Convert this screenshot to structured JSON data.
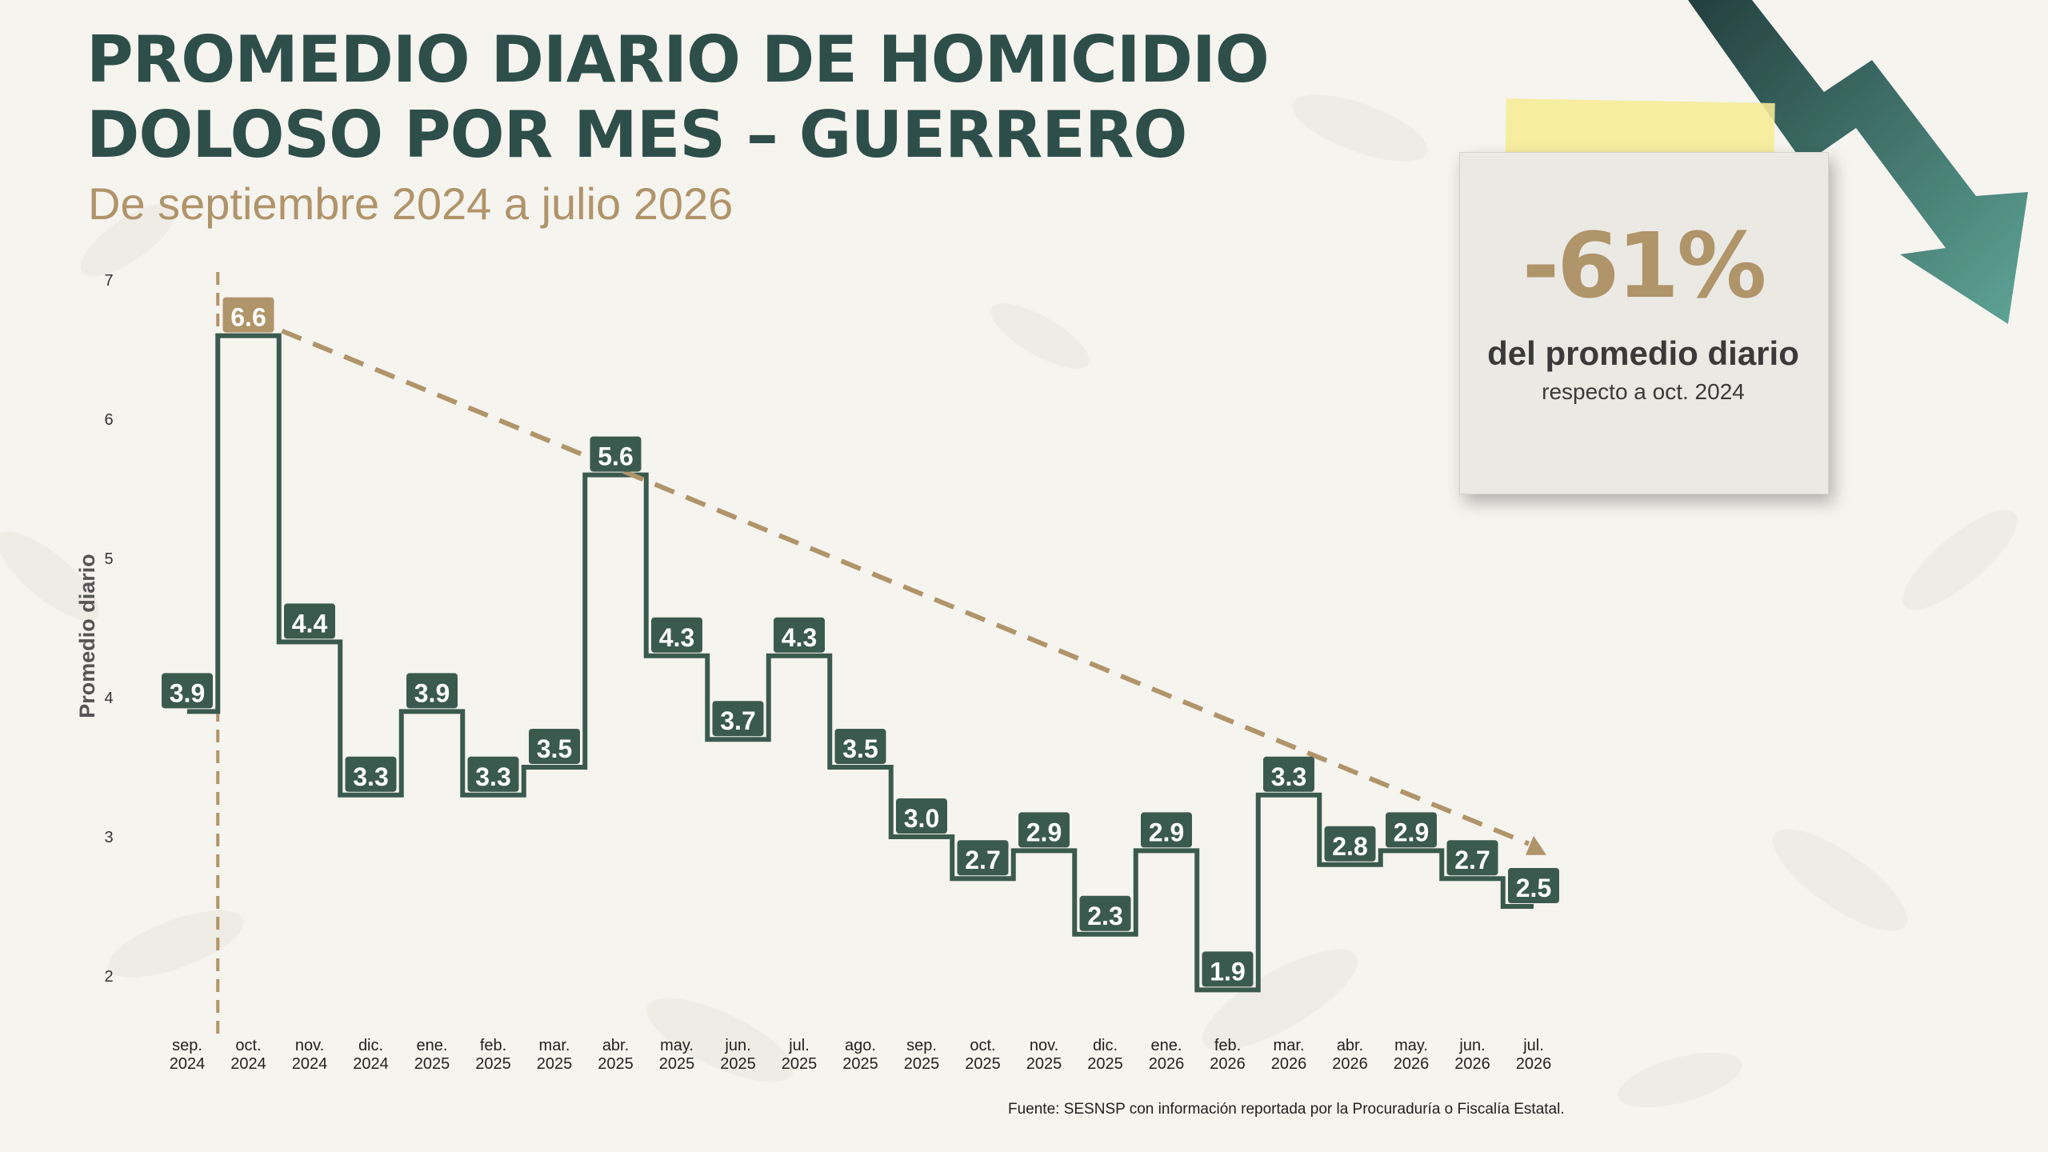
{
  "header": {
    "title_line1": "PROMEDIO DIARIO DE HOMICIDIO",
    "title_line2": "DOLOSO POR MES – GUERRERO",
    "subtitle": "De septiembre 2024 a julio 2026"
  },
  "callout": {
    "value": "-61%",
    "line1": "del promedio diario",
    "line2": "respecto a oct. 2024"
  },
  "source": "Fuente: SESNSP con información reportada por la Procuraduría o Fiscalía Estatal.",
  "colors": {
    "step_line": "#3b5a4f",
    "label_fill": "#3b5a4f",
    "label_text": "#ffffff",
    "peak_label_fill": "#b0946a",
    "trend_line": "#b0946a",
    "title": "#2e4e4a",
    "arrow": "#2f5e58"
  },
  "chart_data": {
    "type": "line",
    "style": "step",
    "title": "PROMEDIO DIARIO DE HOMICIDIO DOLOSO POR MES – GUERRERO",
    "subtitle": "De septiembre 2024 a julio 2026",
    "ylabel": "Promedio diario",
    "xlabel": "",
    "ylim": [
      2,
      7
    ],
    "yticks": [
      2,
      3,
      4,
      5,
      6,
      7
    ],
    "grid": false,
    "categories": [
      "sep. 2024",
      "oct. 2024",
      "nov. 2024",
      "dic. 2024",
      "ene. 2025",
      "feb. 2025",
      "mar. 2025",
      "abr. 2025",
      "may. 2025",
      "jun. 2025",
      "jul. 2025",
      "ago. 2025",
      "sep. 2025",
      "oct. 2025",
      "nov. 2025",
      "dic. 2025",
      "ene. 2026",
      "feb. 2026",
      "mar. 2026",
      "abr. 2026",
      "may. 2026",
      "jun. 2026",
      "jul. 2026"
    ],
    "series": [
      {
        "values": [
          3.9,
          6.6,
          4.4,
          3.3,
          3.9,
          3.3,
          3.5,
          5.6,
          4.3,
          3.7,
          4.3,
          3.5,
          3.0,
          2.7,
          2.9,
          2.3,
          2.9,
          1.9,
          3.3,
          2.8,
          2.9,
          2.7,
          2.5
        ],
        "labels": [
          "3.9",
          "6.6",
          "4.4",
          "3.3",
          "3.9",
          "3.3",
          "3.5",
          "5.6",
          "4.3",
          "3.7",
          "4.3",
          "3.5",
          "3.0",
          "2.7",
          "2.9",
          "2.3",
          "2.9",
          "1.9",
          "3.3",
          "2.8",
          "2.9",
          "2.7",
          "2.5"
        ]
      }
    ],
    "trend": {
      "from": "oct. 2024",
      "to": "jul. 2026",
      "from_value": 6.6,
      "to_value": 2.95,
      "style": "dashed"
    },
    "reference_line": {
      "at": "oct. 2024",
      "style": "dashed vertical"
    },
    "highlight": "oct. 2024"
  }
}
